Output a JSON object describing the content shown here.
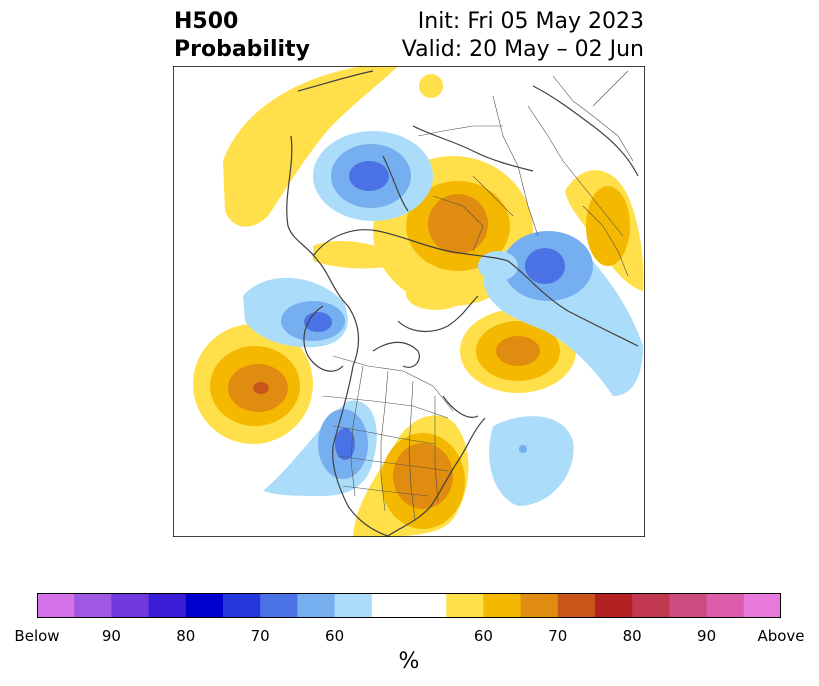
{
  "header": {
    "title_line1": "H500",
    "title_line2": "Probability",
    "init_text": "Init: Fri 05 May 2023",
    "valid_text": "Valid: 20 May – 02 Jun"
  },
  "colorbar": {
    "unit": "%",
    "colors": [
      "#d472e8",
      "#9f58e2",
      "#6f39de",
      "#3a1fd6",
      "#0000cc",
      "#2438dc",
      "#4a72e4",
      "#76aff0",
      "#abdcfa",
      "#ffffff",
      "#ffe04a",
      "#f4b800",
      "#e08c10",
      "#c8561a",
      "#b22222",
      "#c23850",
      "#cc4c80",
      "#dc5eaa",
      "#e878dc"
    ],
    "tick_labels": [
      "Below",
      "90",
      "80",
      "70",
      "60",
      "60",
      "70",
      "80",
      "90",
      "Above"
    ]
  },
  "map": {
    "legend_colors": {
      "below_60": "#abdcfa",
      "below_70": "#76aff0",
      "below_80": "#4a72e4",
      "above_60": "#ffe04a",
      "above_70": "#f4b800",
      "above_80": "#e08c10",
      "above_90": "#c8561a"
    }
  }
}
